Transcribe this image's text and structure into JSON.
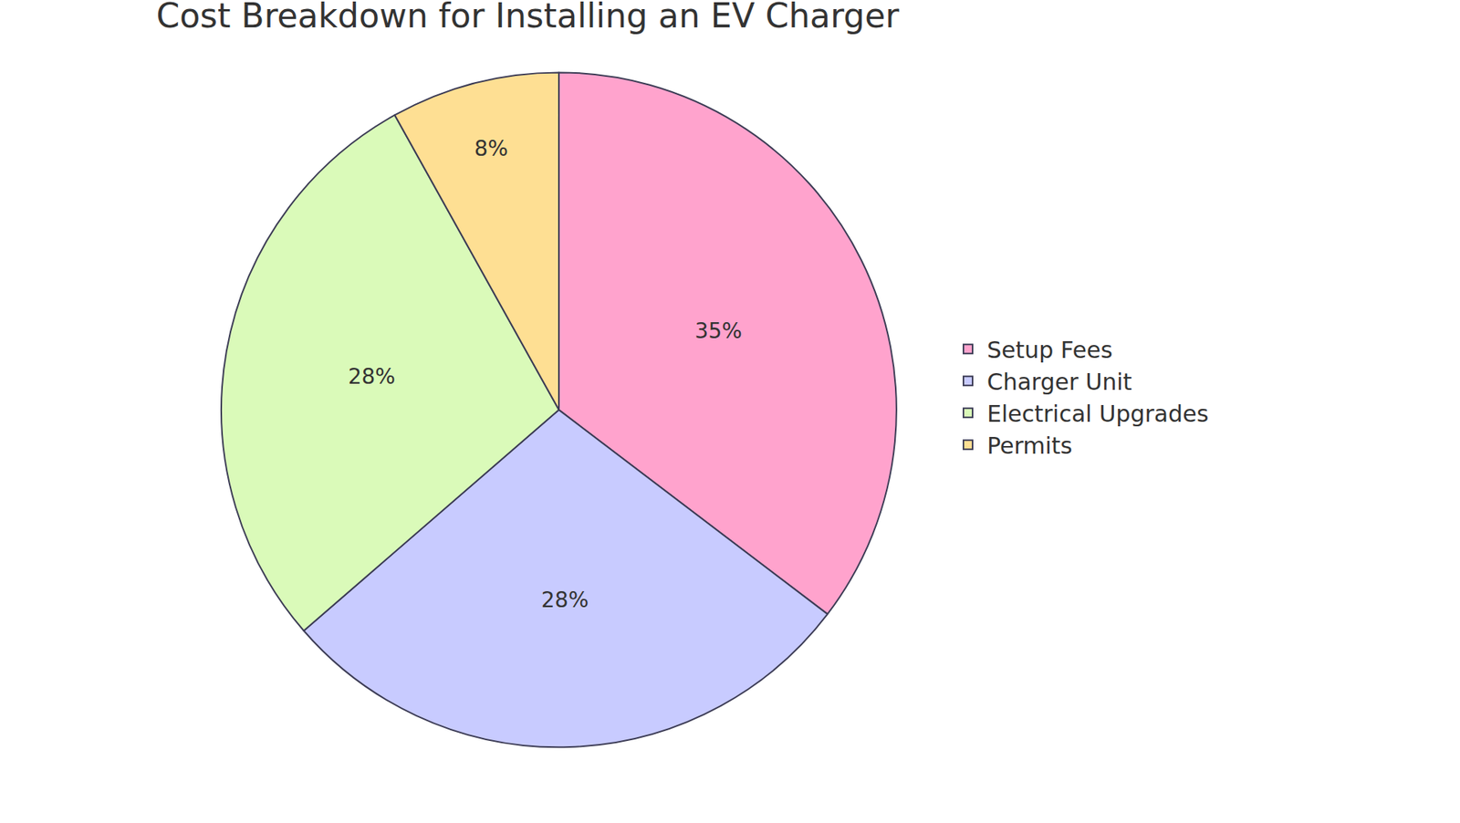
{
  "chart_data": {
    "type": "pie",
    "title": "Cost Breakdown for Installing an EV Charger",
    "categories": [
      "Setup Fees",
      "Charger Unit",
      "Electrical Upgrades",
      "Permits"
    ],
    "values": [
      35,
      28,
      28,
      8
    ],
    "value_labels": [
      "35%",
      "28%",
      "28%",
      "8%"
    ],
    "colors": [
      "#ffa3cd",
      "#c8cbff",
      "#dafab9",
      "#fedf93"
    ],
    "data_labels": true,
    "legend": "right"
  }
}
